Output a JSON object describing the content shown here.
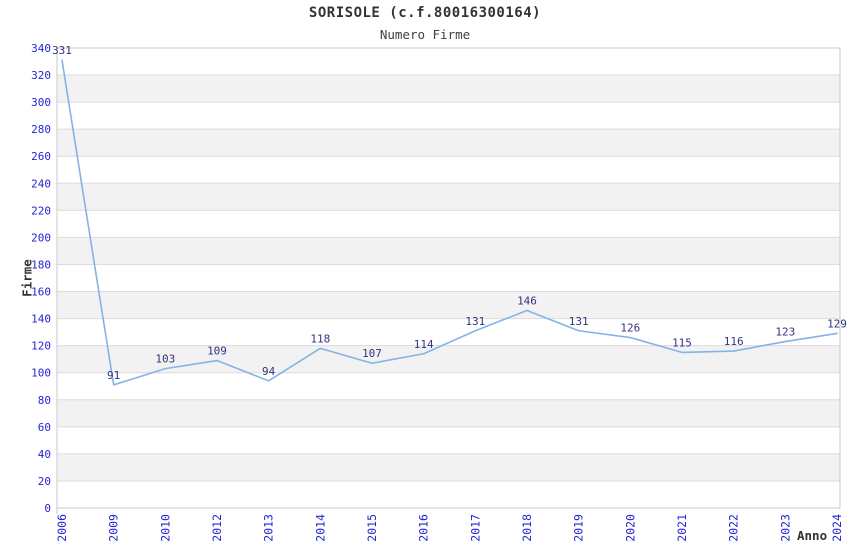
{
  "chart_data": {
    "type": "line",
    "title": "SORISOLE (c.f.80016300164)",
    "subtitle": "Numero Firme",
    "xlabel": "Anno",
    "ylabel": "Firme",
    "categories": [
      "2006",
      "2009",
      "2010",
      "2012",
      "2013",
      "2014",
      "2015",
      "2016",
      "2017",
      "2018",
      "2019",
      "2020",
      "2021",
      "2022",
      "2023",
      "2024"
    ],
    "values": [
      331,
      91,
      103,
      109,
      94,
      118,
      107,
      114,
      131,
      146,
      131,
      126,
      115,
      116,
      123,
      129
    ],
    "ylim": [
      0,
      340
    ],
    "ytick_step": 20,
    "grid": "horizontal-bands-alternating",
    "legend": "none",
    "colors": {
      "line": "#85b3e6",
      "band": "#f2f2f2",
      "band_alt": "#ffffff",
      "gridline": "#dcdcdc",
      "border": "#c9c9c9",
      "tick_label": "#2424d6",
      "data_label": "#333380",
      "text": "#333333"
    }
  }
}
